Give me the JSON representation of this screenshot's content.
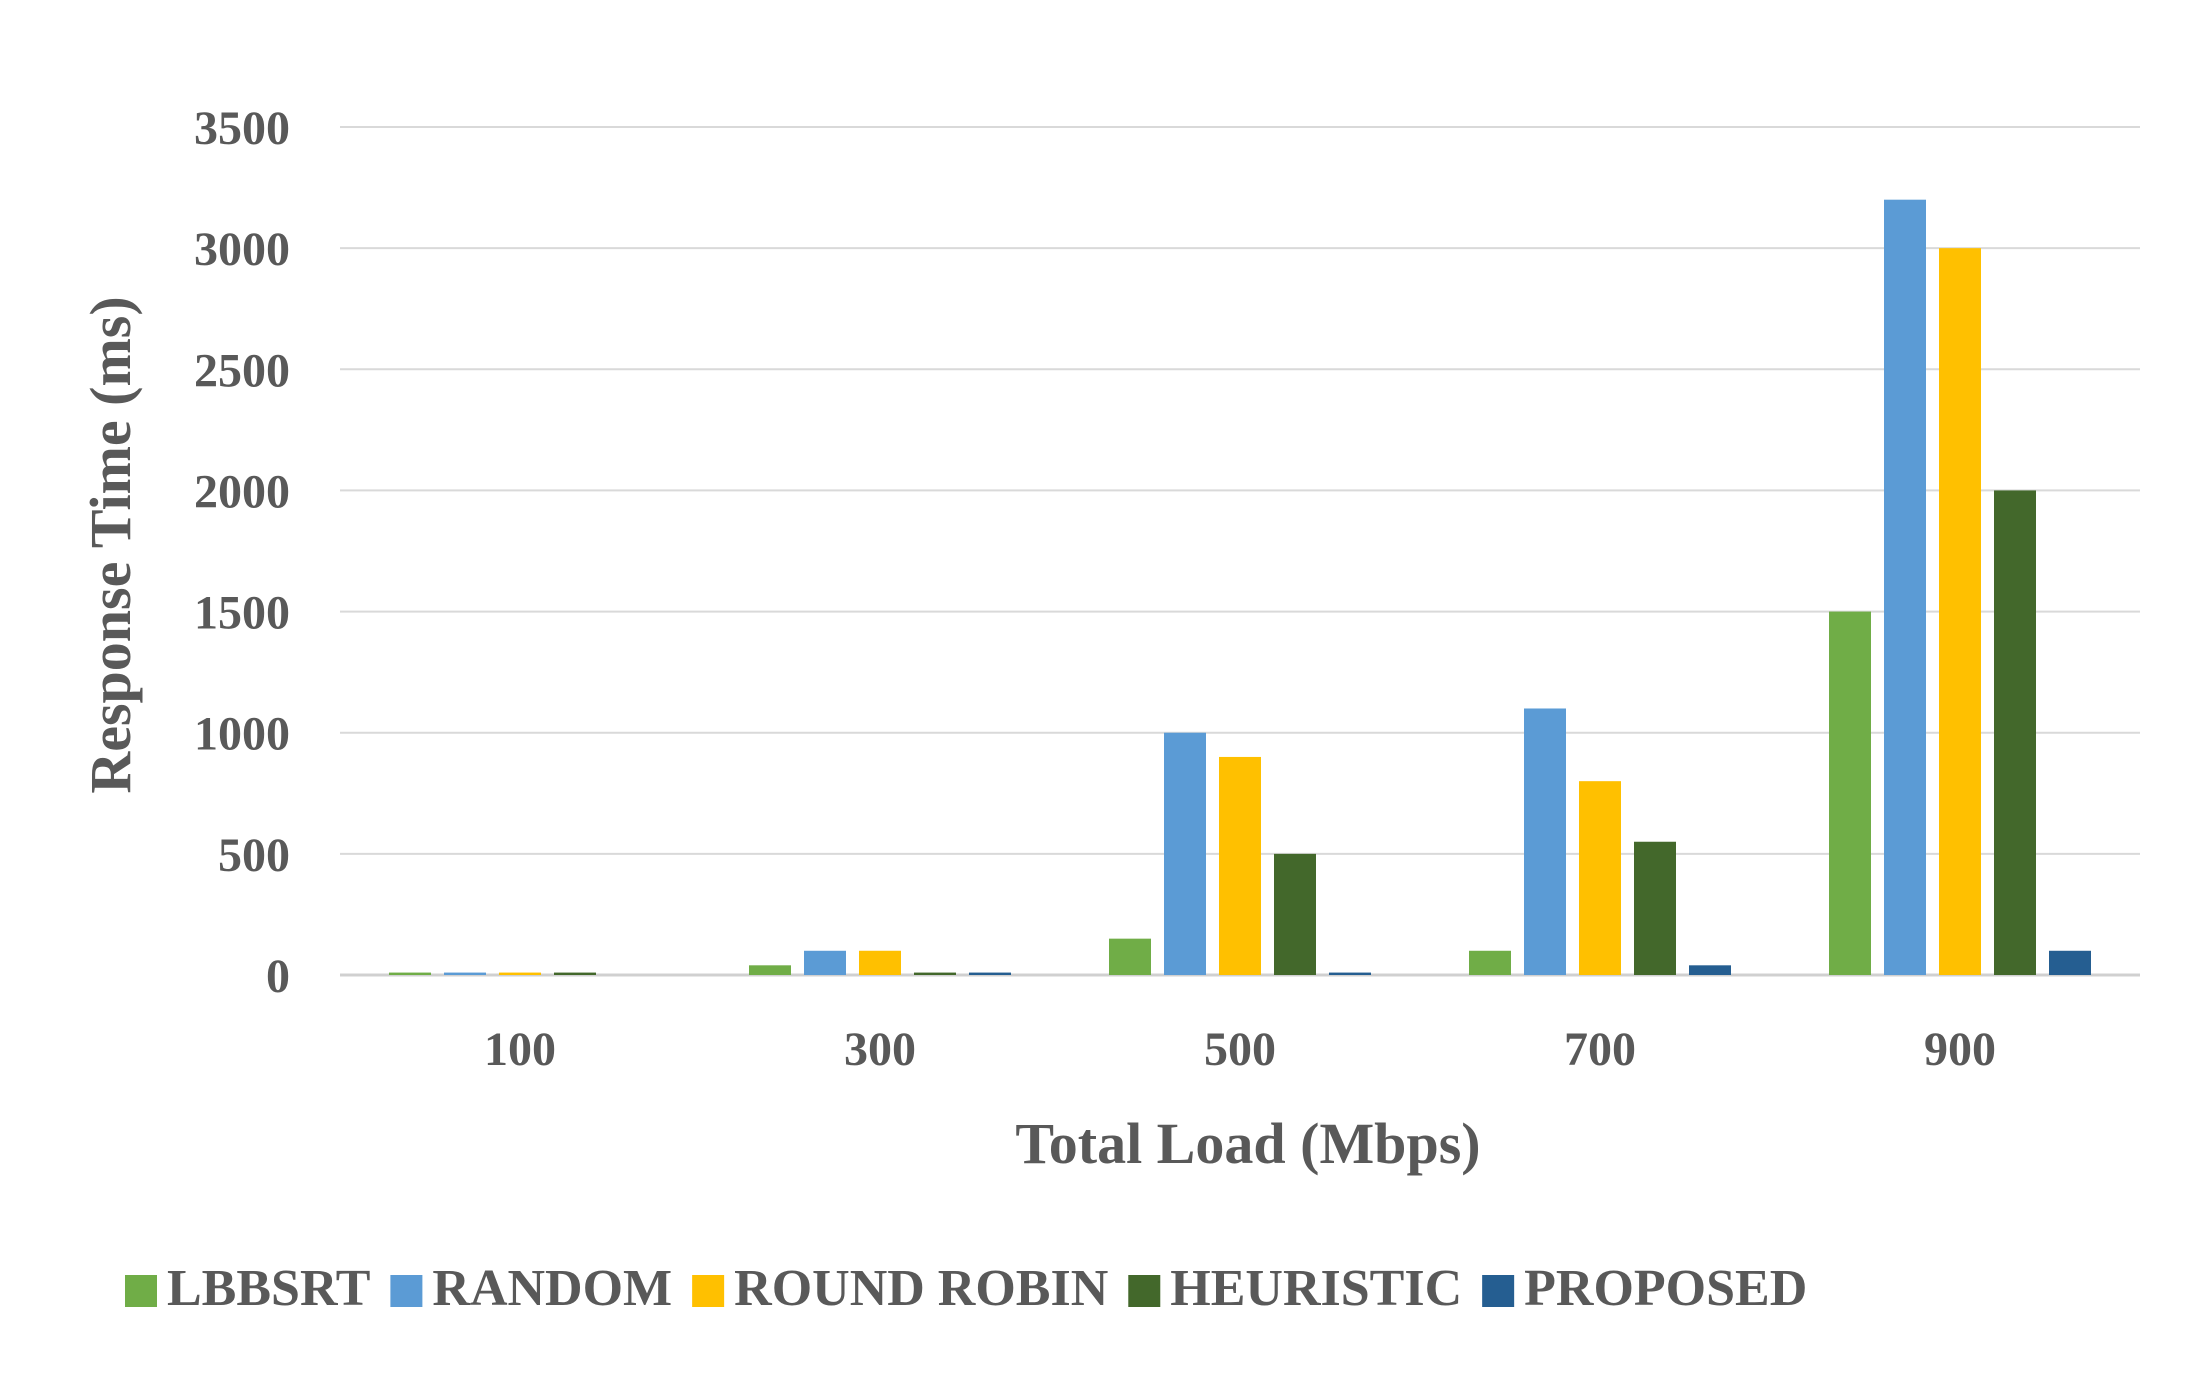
{
  "chart_data": {
    "type": "bar",
    "xlabel": "Total Load (Mbps)",
    "ylabel": "Response Time (ms)",
    "ylim": [
      0,
      3500
    ],
    "yticks": [
      0,
      500,
      1000,
      1500,
      2000,
      2500,
      3000,
      3500
    ],
    "grid": true,
    "legend_position": "bottom",
    "categories": [
      "100",
      "300",
      "500",
      "700",
      "900"
    ],
    "series": [
      {
        "name": "LBBSRT",
        "color": "#70ad47",
        "values": [
          10,
          40,
          150,
          100,
          1500
        ]
      },
      {
        "name": "RANDOM",
        "color": "#5b9bd5",
        "values": [
          10,
          100,
          1000,
          1100,
          3200
        ]
      },
      {
        "name": "ROUND ROBIN",
        "color": "#ffc000",
        "values": [
          10,
          100,
          900,
          800,
          3000
        ]
      },
      {
        "name": "HEURISTIC",
        "color": "#43682b",
        "values": [
          10,
          10,
          500,
          550,
          2000
        ]
      },
      {
        "name": "PROPOSED",
        "color": "#255e91",
        "values": [
          0,
          10,
          10,
          40,
          100
        ]
      }
    ]
  }
}
